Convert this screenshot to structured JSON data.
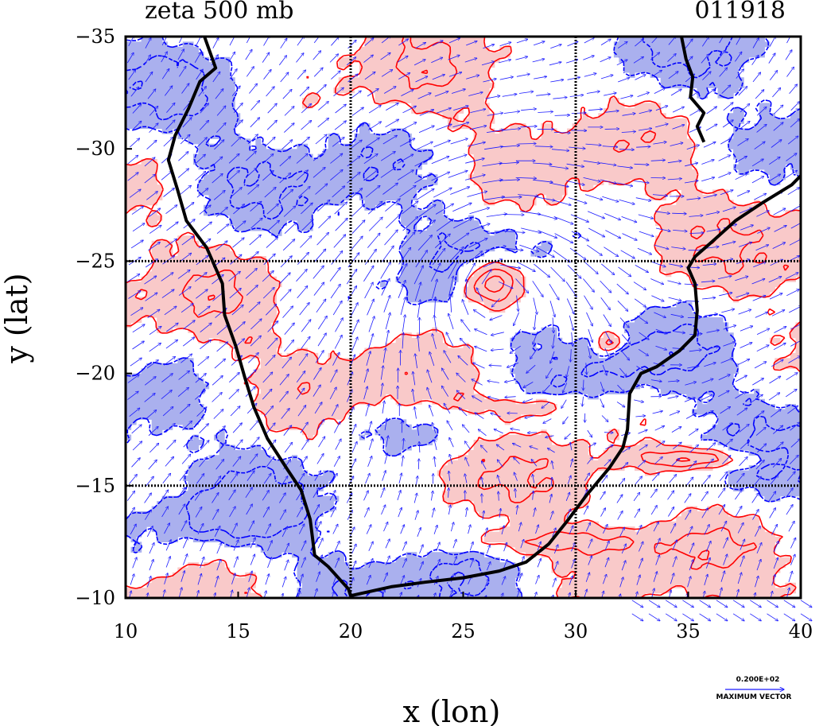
{
  "chart_data": {
    "type": "contour_vector_map",
    "title_left": "zeta 500 mb",
    "title_right": "011918",
    "xlabel": "x (lon)",
    "ylabel": "y (lat)",
    "xlim": [
      10,
      40
    ],
    "ylim": [
      -35,
      -10
    ],
    "y_axis_inverted": true,
    "x_ticks": [
      10,
      15,
      20,
      25,
      30,
      35,
      40
    ],
    "x_tick_labels": [
      "10",
      "15",
      "20",
      "25",
      "30",
      "35",
      "40"
    ],
    "y_ticks": [
      -35,
      -30,
      -25,
      -20,
      -15,
      -10
    ],
    "y_tick_labels": [
      "−35",
      "−30",
      "−25",
      "−20",
      "−15",
      "−10"
    ],
    "gridlines_x": [
      20,
      30
    ],
    "gridlines_y": [
      -25,
      -15
    ],
    "grid": "dotted at 20, 30 lon and -25, -15 lat",
    "legend": {
      "vector_scale_label": "0.200E+02",
      "vector_caption": "MAXIMUM VECTOR"
    },
    "colors": {
      "positive_fill": "#f9c9c9",
      "positive_contour": "#ff0000",
      "negative_fill": "#aab0ee",
      "negative_contour": "#0000ff",
      "vectors": "#1a1aff",
      "coastline": "#000000",
      "gridlines": "#000000"
    },
    "features": [
      {
        "name": "cyclonic vortex",
        "lon": 26.3,
        "lat": -24.0,
        "sign": "positive"
      },
      {
        "name": "vorticity cluster",
        "lon": 31.5,
        "lat": -21.3,
        "sign": "positive"
      },
      {
        "name": "elongated band",
        "lon": 35.5,
        "lat": -16.2,
        "sign": "positive"
      }
    ]
  }
}
